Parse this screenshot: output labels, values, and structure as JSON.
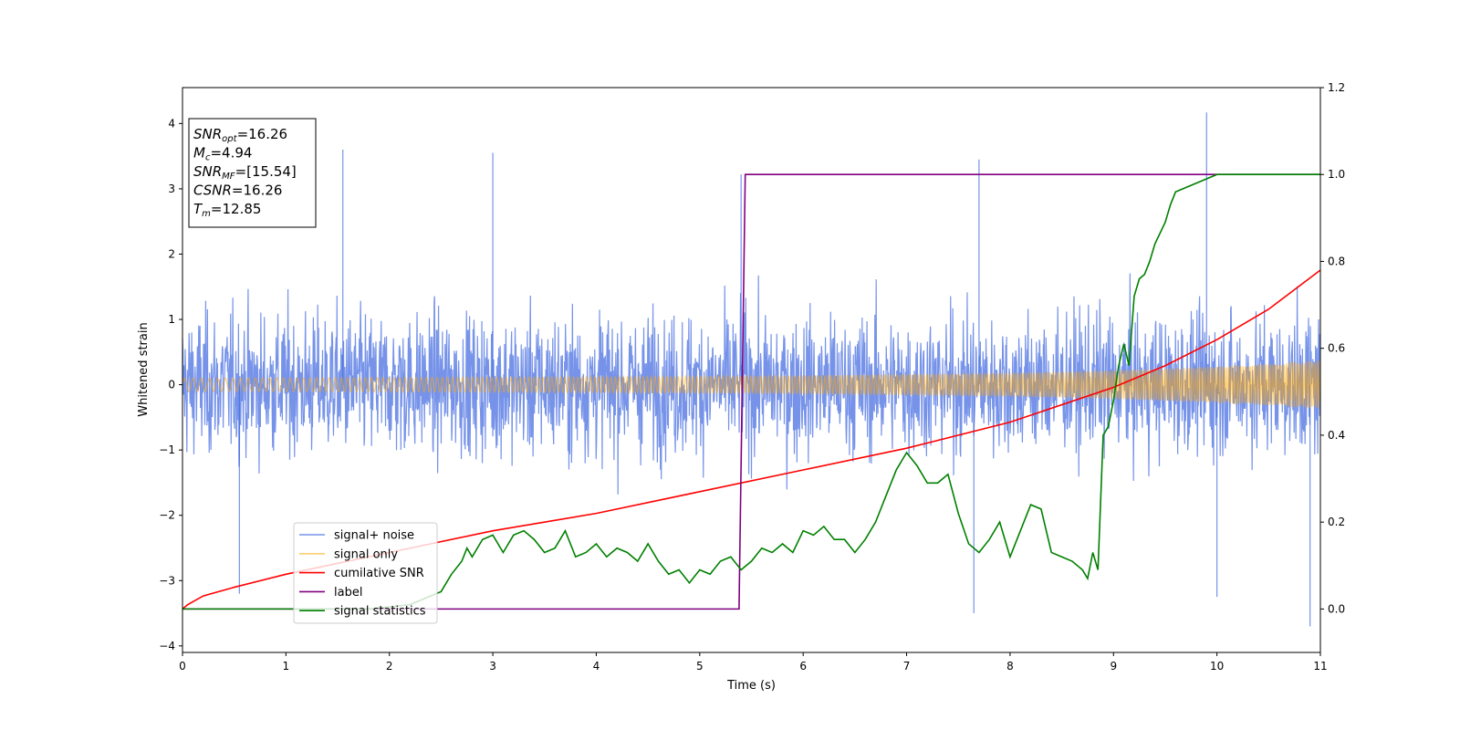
{
  "chart_data": {
    "type": "line",
    "xlabel": "Time (s)",
    "ylabel": "Whitened strain",
    "xlim": [
      0,
      11
    ],
    "ylim_left": [
      -4.1,
      4.55
    ],
    "ylim_right": [
      -0.1,
      1.2
    ],
    "x_ticks": [
      "0",
      "1",
      "2",
      "3",
      "4",
      "5",
      "6",
      "7",
      "8",
      "9",
      "10",
      "11"
    ],
    "y_ticks_left": [
      "−4",
      "−3",
      "−2",
      "−1",
      "0",
      "1",
      "2",
      "3",
      "4"
    ],
    "y_ticks_right": [
      "0.0",
      "0.2",
      "0.4",
      "0.6",
      "0.8",
      "1.0",
      "1.2"
    ],
    "legend_location": "lower-left",
    "annotation": {
      "lines": [
        {
          "base": "SNR",
          "sub": "opt",
          "value": "=16.26"
        },
        {
          "base": "M",
          "sub": "c",
          "value": "=4.94"
        },
        {
          "base": "SNR",
          "sub": "MF",
          "value": "=[15.54]"
        },
        {
          "base": "CSNR",
          "sub": "",
          "value": "=16.26"
        },
        {
          "base": "T",
          "sub": "m",
          "value": "=12.85"
        }
      ]
    },
    "series": [
      {
        "name": "signal+ noise",
        "color": "#4169e1",
        "axis": "left",
        "kind": "noise",
        "approx_envelope": [
          -2.5,
          2.5
        ],
        "notable_peaks": [
          [
            1.55,
            3.6
          ],
          [
            3.0,
            3.55
          ],
          [
            5.4,
            3.22
          ],
          [
            7.7,
            3.45
          ],
          [
            9.9,
            4.17
          ],
          [
            10.9,
            -3.7
          ],
          [
            7.65,
            -3.5
          ],
          [
            0.55,
            -3.2
          ],
          [
            10.0,
            -3.25
          ]
        ]
      },
      {
        "name": "signal only",
        "color": "#ffa500",
        "axis": "left",
        "kind": "chirp",
        "amplitude": {
          "x": [
            0,
            2,
            4,
            6,
            8,
            9,
            10,
            11
          ],
          "y": [
            0.1,
            0.11,
            0.12,
            0.14,
            0.18,
            0.22,
            0.28,
            0.37
          ]
        }
      },
      {
        "name": "cumilative SNR",
        "color": "#ff0000",
        "axis": "right",
        "x": [
          0,
          0.05,
          0.2,
          0.5,
          1,
          2,
          3,
          4,
          5,
          6,
          7,
          8,
          9,
          9.5,
          10,
          10.5,
          11
        ],
        "y": [
          0.0,
          0.01,
          0.03,
          0.05,
          0.08,
          0.13,
          0.18,
          0.22,
          0.27,
          0.32,
          0.37,
          0.43,
          0.51,
          0.56,
          0.62,
          0.69,
          0.78
        ]
      },
      {
        "name": "label",
        "color": "#800080",
        "axis": "right",
        "x": [
          0,
          5.38,
          5.44,
          11
        ],
        "y": [
          0.0,
          0.0,
          1.0,
          1.0
        ]
      },
      {
        "name": "signal statistics",
        "color": "#008000",
        "axis": "right",
        "x": [
          0,
          1,
          1.8,
          2.2,
          2.5,
          2.6,
          2.7,
          2.75,
          2.8,
          2.9,
          3.0,
          3.1,
          3.2,
          3.3,
          3.4,
          3.5,
          3.6,
          3.7,
          3.8,
          3.9,
          4.0,
          4.1,
          4.2,
          4.3,
          4.4,
          4.5,
          4.6,
          4.7,
          4.8,
          4.9,
          5.0,
          5.1,
          5.2,
          5.3,
          5.4,
          5.5,
          5.6,
          5.7,
          5.8,
          5.9,
          6.0,
          6.1,
          6.2,
          6.3,
          6.4,
          6.5,
          6.6,
          6.7,
          6.8,
          6.9,
          7.0,
          7.1,
          7.2,
          7.3,
          7.4,
          7.5,
          7.6,
          7.7,
          7.8,
          7.9,
          8.0,
          8.1,
          8.2,
          8.3,
          8.4,
          8.5,
          8.6,
          8.7,
          8.75,
          8.8,
          8.85,
          8.9,
          8.95,
          9.0,
          9.05,
          9.1,
          9.15,
          9.2,
          9.25,
          9.3,
          9.35,
          9.4,
          9.5,
          9.55,
          9.6,
          9.7,
          9.8,
          9.9,
          10.0,
          10.5,
          11
        ],
        "y": [
          0.0,
          0.0,
          0.0,
          0.01,
          0.04,
          0.08,
          0.11,
          0.14,
          0.12,
          0.16,
          0.17,
          0.13,
          0.17,
          0.18,
          0.16,
          0.13,
          0.14,
          0.18,
          0.12,
          0.13,
          0.15,
          0.12,
          0.14,
          0.13,
          0.11,
          0.15,
          0.11,
          0.08,
          0.09,
          0.06,
          0.09,
          0.08,
          0.11,
          0.12,
          0.09,
          0.11,
          0.14,
          0.13,
          0.15,
          0.13,
          0.18,
          0.17,
          0.19,
          0.16,
          0.16,
          0.13,
          0.16,
          0.2,
          0.26,
          0.32,
          0.36,
          0.33,
          0.29,
          0.29,
          0.31,
          0.22,
          0.15,
          0.13,
          0.16,
          0.2,
          0.12,
          0.18,
          0.24,
          0.23,
          0.13,
          0.12,
          0.11,
          0.09,
          0.07,
          0.13,
          0.09,
          0.4,
          0.42,
          0.48,
          0.56,
          0.61,
          0.56,
          0.72,
          0.76,
          0.77,
          0.8,
          0.84,
          0.89,
          0.93,
          0.96,
          0.97,
          0.98,
          0.99,
          1.0,
          1.0,
          1.0
        ]
      }
    ]
  }
}
